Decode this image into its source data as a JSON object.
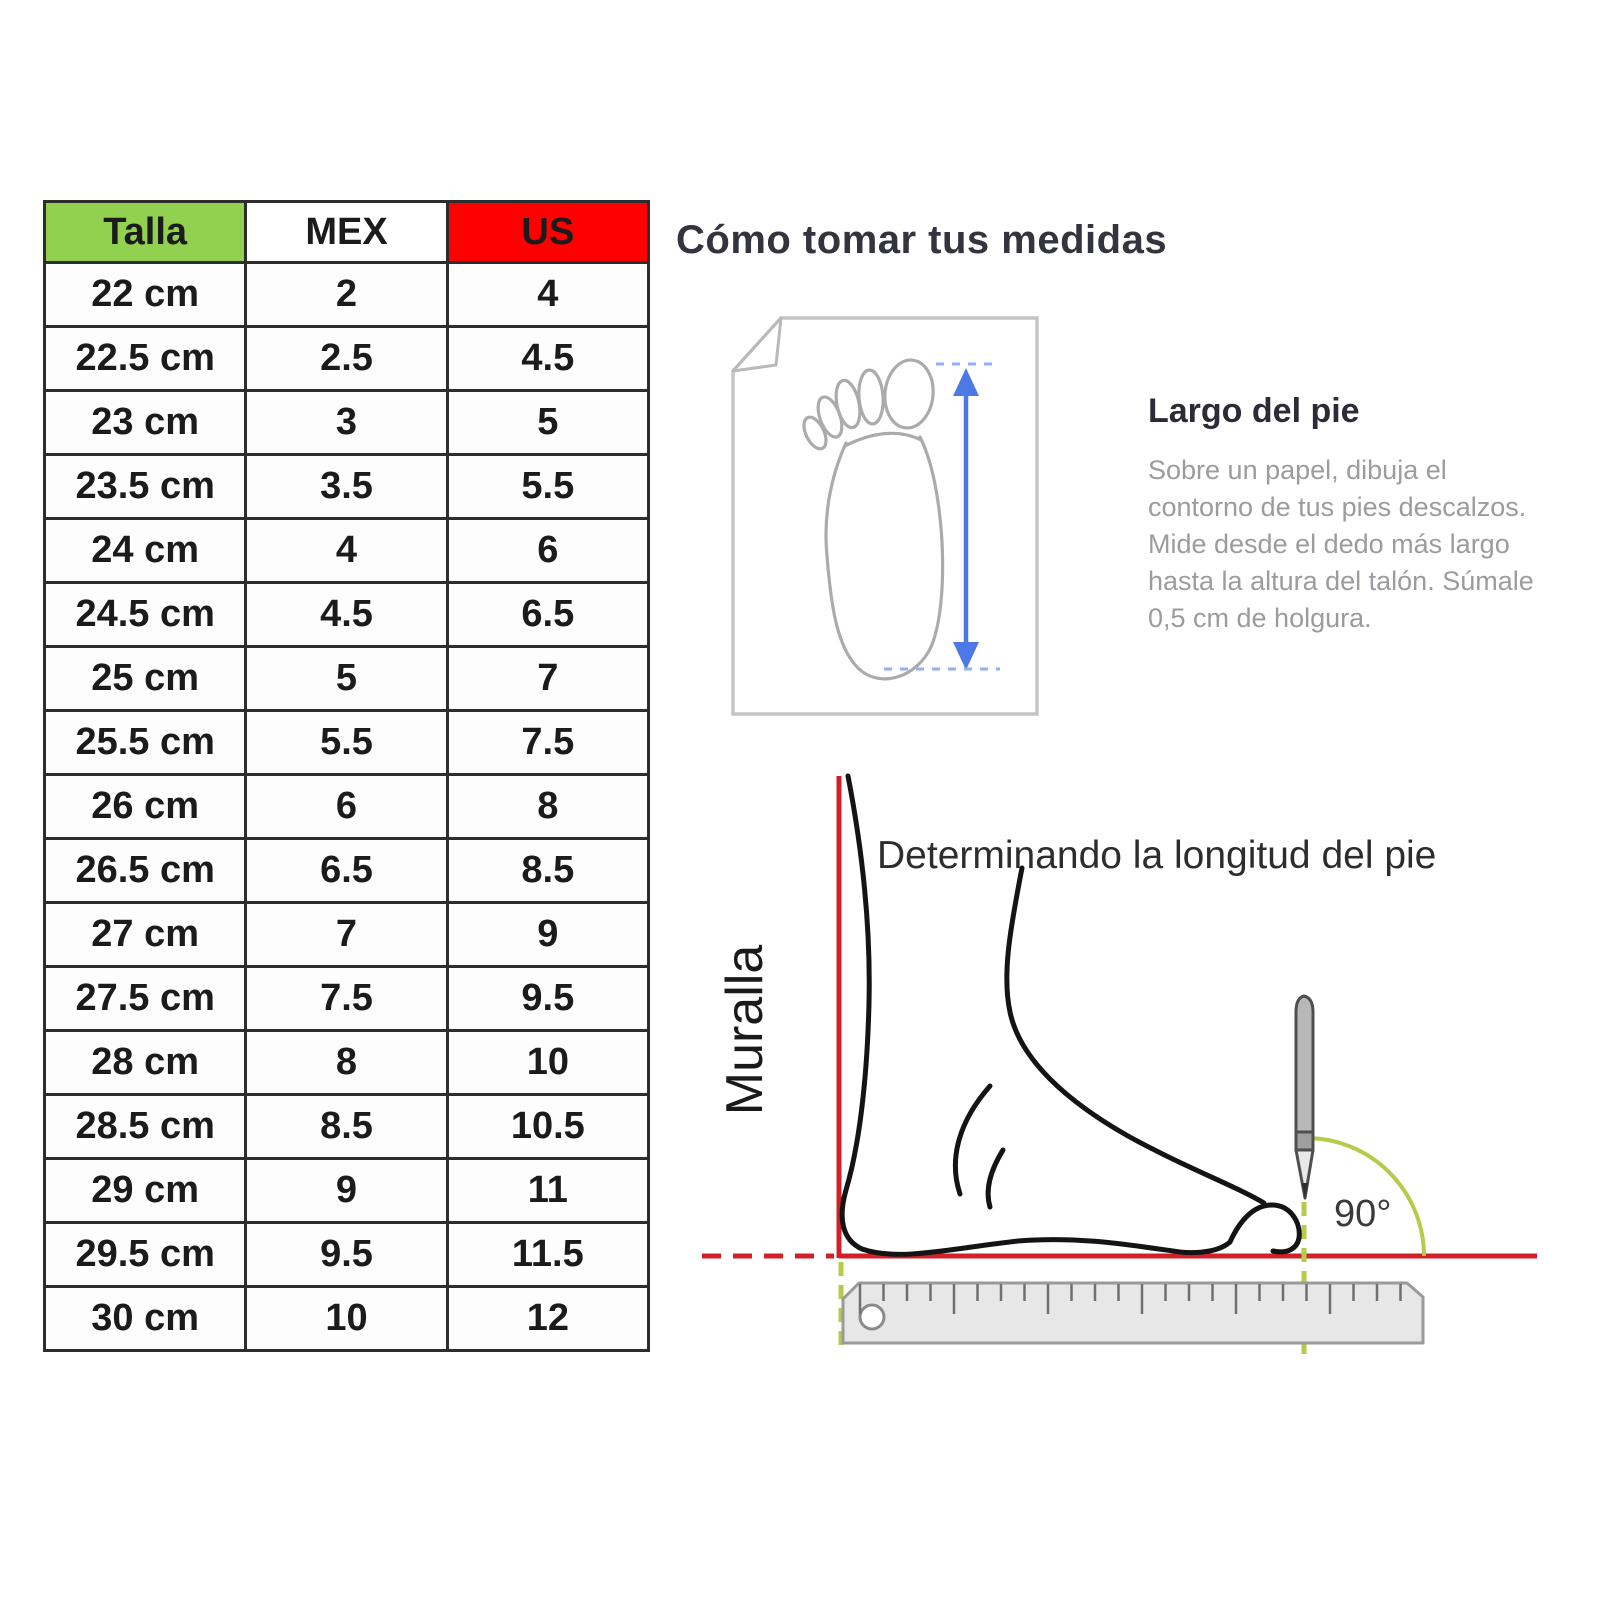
{
  "size_table": {
    "headers": [
      "Talla",
      "MEX",
      "US"
    ],
    "header_colors": [
      "#92d050",
      "#ffffff",
      "#fe0000"
    ],
    "rows": [
      [
        "22 cm",
        "2",
        "4"
      ],
      [
        "22.5 cm",
        "2.5",
        "4.5"
      ],
      [
        "23 cm",
        "3",
        "5"
      ],
      [
        "23.5 cm",
        "3.5",
        "5.5"
      ],
      [
        "24 cm",
        "4",
        "6"
      ],
      [
        "24.5 cm",
        "4.5",
        "6.5"
      ],
      [
        "25 cm",
        "5",
        "7"
      ],
      [
        "25.5 cm",
        "5.5",
        "7.5"
      ],
      [
        "26 cm",
        "6",
        "8"
      ],
      [
        "26.5 cm",
        "6.5",
        "8.5"
      ],
      [
        "27 cm",
        "7",
        "9"
      ],
      [
        "27.5 cm",
        "7.5",
        "9.5"
      ],
      [
        "28 cm",
        "8",
        "10"
      ],
      [
        "28.5 cm",
        "8.5",
        "10.5"
      ],
      [
        "29 cm",
        "9",
        "11"
      ],
      [
        "29.5 cm",
        "9.5",
        "11.5"
      ],
      [
        "30 cm",
        "10",
        "12"
      ]
    ]
  },
  "guide": {
    "title": "Cómo tomar tus medidas",
    "foot_length": {
      "heading": "Largo del pie",
      "body": "Sobre un papel, dibuja el contorno de tus pies descalzos. Mide desde el dedo más largo hasta la altura del talón. Súmale 0,5 cm de holgura."
    },
    "length_diagram": {
      "title": "Determinando la longitud del pie",
      "wall_label": "Muralla",
      "angle_label": "90°"
    }
  },
  "colors": {
    "header_green": "#92d050",
    "header_red": "#fe0000",
    "measure_line_red": "#d0212a",
    "guide_line_green": "#b5cb4a",
    "arrow_blue": "#4d79e6"
  }
}
